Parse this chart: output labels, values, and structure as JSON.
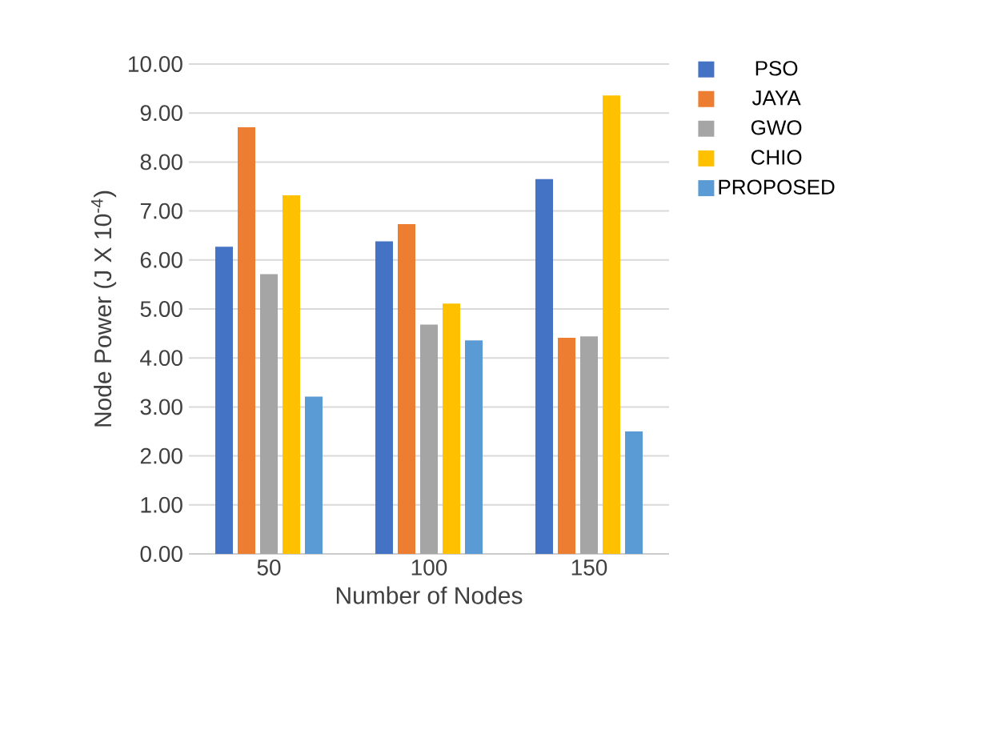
{
  "chart_data": {
    "type": "bar",
    "xlabel": "Number of Nodes",
    "ylabel": "Node Power (J X 10$^{-4}$)",
    "categories": [
      "50",
      "100",
      "150"
    ],
    "series": [
      {
        "name": "PSO",
        "color": "#4472c4",
        "values": [
          6.27,
          6.38,
          7.65
        ]
      },
      {
        "name": "JAYA",
        "color": "#ed7d31",
        "values": [
          8.71,
          6.73,
          4.41
        ]
      },
      {
        "name": "GWO",
        "color": "#a5a5a5",
        "values": [
          5.71,
          4.68,
          4.44
        ]
      },
      {
        "name": "CHIO",
        "color": "#ffc000",
        "values": [
          7.32,
          5.11,
          9.36
        ]
      },
      {
        "name": "PROPOSED",
        "color": "#5b9bd5",
        "values": [
          3.21,
          4.36,
          2.5
        ]
      }
    ],
    "ylim": [
      0,
      10
    ],
    "yticks": [
      {
        "value": 0,
        "label": "0.00"
      },
      {
        "value": 1,
        "label": "1.00"
      },
      {
        "value": 2,
        "label": "2.00"
      },
      {
        "value": 3,
        "label": "3.00"
      },
      {
        "value": 4,
        "label": "4.00"
      },
      {
        "value": 5,
        "label": "5.00"
      },
      {
        "value": 6,
        "label": "6.00"
      },
      {
        "value": 7,
        "label": "7.00"
      },
      {
        "value": 8,
        "label": "8.00"
      },
      {
        "value": 9,
        "label": "9.00"
      },
      {
        "value": 10,
        "label": "10.00"
      }
    ],
    "grid": "y",
    "legend": "right"
  }
}
